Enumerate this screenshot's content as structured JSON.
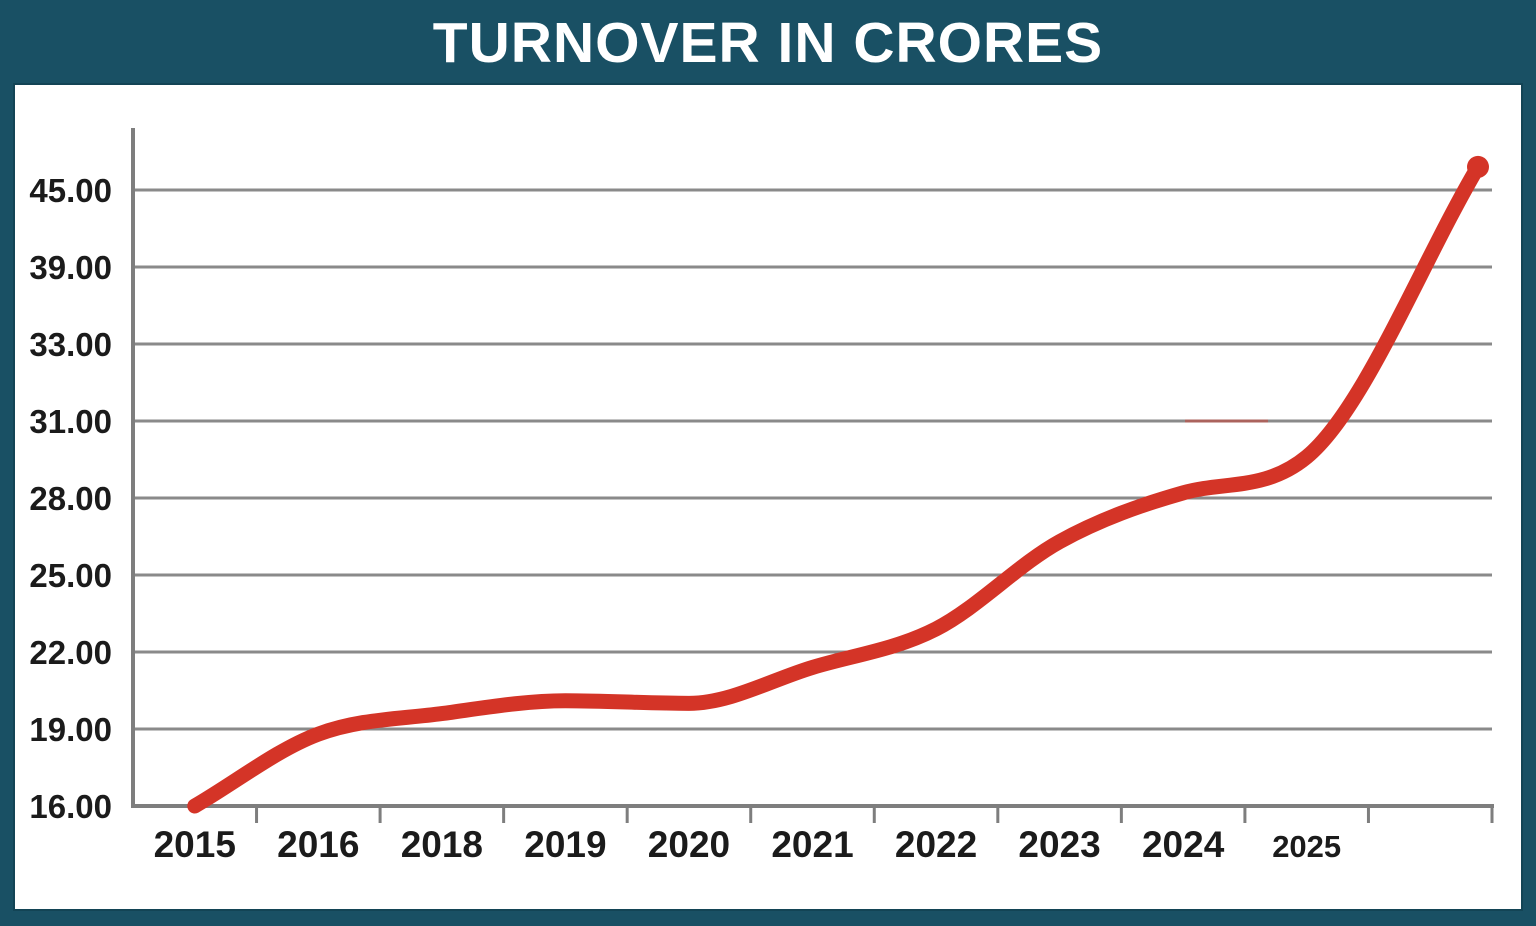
{
  "title": "TURNOVER IN CRORES",
  "colors": {
    "background": "#195064",
    "panel": "#FFFFFF",
    "line": "#D43427",
    "gridline": "#8A8A8A",
    "axis": "#7E7E7E",
    "label": "#1B1B1B",
    "title_text": "#FFFFFF"
  },
  "chart_data": {
    "type": "line",
    "title": "TURNOVER IN CRORES",
    "categories": [
      "2015",
      "2016",
      "2018",
      "2019",
      "2020",
      "2021",
      "2022",
      "2023",
      "2024",
      "2025",
      ""
    ],
    "series": [
      {
        "name": "Turnover in crores",
        "values": [
          16.0,
          18.8,
          19.6,
          20.1,
          20.0,
          21.4,
          22.9,
          26.3,
          28.2,
          29.6,
          46.8
        ]
      }
    ],
    "y_ticks": [
      "16.00",
      "19.00",
      "22.00",
      "25.00",
      "28.00",
      "31.00",
      "33.00",
      "39.00",
      "45.00"
    ],
    "y_tick_values": [
      16,
      19,
      22,
      25,
      28,
      31,
      33,
      39,
      45
    ],
    "xlabel": "",
    "ylabel": "",
    "grid": true,
    "legend": false,
    "axis_note": "y-axis tick labels are equally spaced (non-linear value axis); x category ticks sit between year labels",
    "line_style": "thick smoothed red line, round caps, bulb endpoint at top right"
  }
}
